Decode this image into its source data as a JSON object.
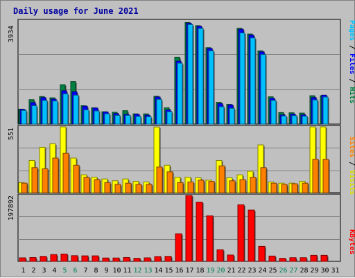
{
  "chart_data": [
    {
      "type": "bar",
      "title": "Daily usage for June 2021",
      "ylabel_max": "3934",
      "ymax": 3934,
      "categories": [
        "1",
        "2",
        "3",
        "4",
        "5",
        "6",
        "7",
        "8",
        "9",
        "10",
        "11",
        "12",
        "13",
        "14",
        "15",
        "16",
        "17",
        "18",
        "19",
        "20",
        "21",
        "22",
        "23",
        "24",
        "25",
        "26",
        "27",
        "28",
        "29",
        "30",
        "31"
      ],
      "weekend_days": [
        "5",
        "6",
        "12",
        "13",
        "19",
        "20",
        "26",
        "27"
      ],
      "legend": [
        "Pages",
        "Files",
        "Hits"
      ],
      "series": [
        {
          "name": "Hits",
          "color": "#008040",
          "values": [
            570,
            930,
            1050,
            1000,
            1500,
            1620,
            700,
            620,
            470,
            450,
            510,
            390,
            390,
            1060,
            620,
            2550,
            3870,
            3750,
            2910,
            830,
            750,
            3650,
            3430,
            2790,
            1040,
            440,
            430,
            420,
            1080,
            1080,
            null
          ]
        },
        {
          "name": "Files",
          "color": "#0000ff",
          "values": [
            560,
            820,
            1010,
            950,
            1270,
            1230,
            680,
            610,
            460,
            400,
            370,
            370,
            340,
            1030,
            540,
            2400,
            3840,
            3720,
            2880,
            780,
            730,
            3610,
            3390,
            2750,
            980,
            350,
            380,
            350,
            1010,
            1100,
            null
          ]
        },
        {
          "name": "Pages",
          "color": "#00c0ff",
          "values": [
            520,
            700,
            900,
            880,
            1150,
            1100,
            540,
            500,
            390,
            330,
            330,
            290,
            280,
            940,
            470,
            2320,
            3790,
            3640,
            2790,
            660,
            600,
            3470,
            3280,
            2650,
            900,
            310,
            320,
            300,
            920,
            1030,
            null
          ]
        }
      ]
    },
    {
      "type": "bar",
      "ylabel_max": "551",
      "ymax": 551,
      "legend": [
        "Sites",
        "Visits"
      ],
      "series": [
        {
          "name": "Visits",
          "color": "#ffff00",
          "values": [
            85,
            270,
            380,
            410,
            551,
            290,
            150,
            130,
            115,
            100,
            115,
            95,
            90,
            550,
            230,
            130,
            130,
            125,
            105,
            270,
            125,
            150,
            180,
            400,
            90,
            80,
            80,
            95,
            551,
            551,
            null
          ]
        },
        {
          "name": "Sites",
          "color": "#ff8000",
          "values": [
            80,
            210,
            200,
            290,
            330,
            230,
            130,
            110,
            85,
            70,
            80,
            70,
            70,
            215,
            175,
            85,
            90,
            105,
            95,
            225,
            100,
            110,
            130,
            210,
            80,
            70,
            75,
            80,
            280,
            280,
            null
          ]
        }
      ]
    },
    {
      "type": "bar",
      "ylabel_max": "197892",
      "ymax": 197892,
      "legend": [
        "KBytes"
      ],
      "series": [
        {
          "name": "KBytes",
          "color": "#ff0000",
          "values": [
            10500,
            11500,
            15000,
            20500,
            22000,
            17000,
            16500,
            16500,
            10000,
            10000,
            11500,
            9000,
            10500,
            14500,
            15000,
            83000,
            197892,
            178000,
            137000,
            35000,
            19000,
            170000,
            154000,
            45000,
            16000,
            9000,
            11000,
            11000,
            18000,
            18000,
            null
          ]
        }
      ]
    }
  ]
}
